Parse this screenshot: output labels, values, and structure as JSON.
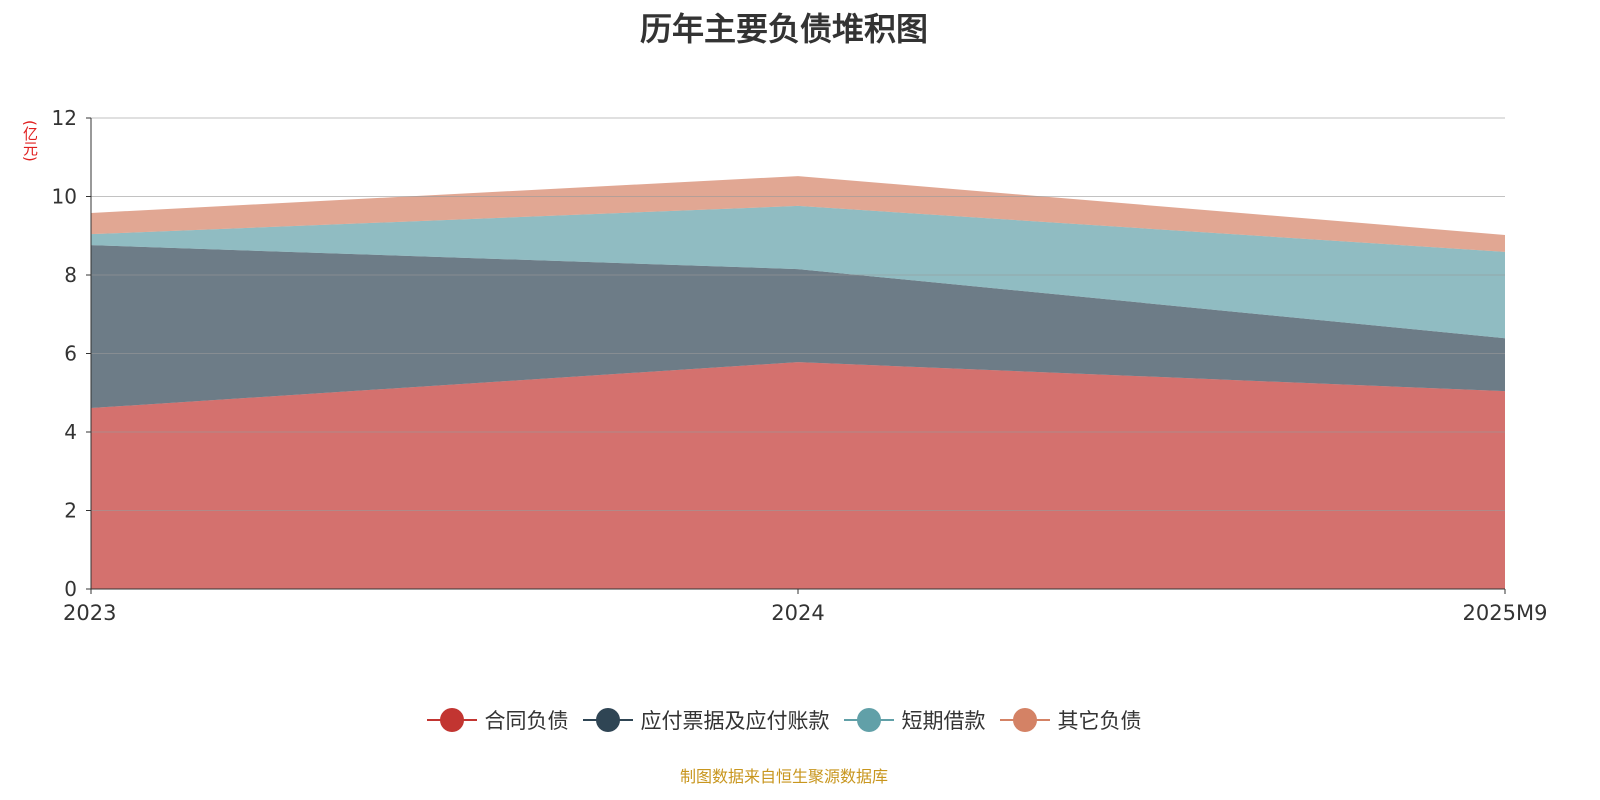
{
  "chart_data": {
    "type": "area",
    "stacked": true,
    "title": "历年主要负债堆积图",
    "ylabel": "(亿元)",
    "xlabel": "",
    "categories": [
      "2023",
      "2024",
      "2025M9"
    ],
    "ylim": [
      0,
      12
    ],
    "yticks": [
      0,
      2,
      4,
      6,
      8,
      10,
      12
    ],
    "grid": true,
    "legend_position": "bottom",
    "series": [
      {
        "name": "合同负债",
        "color": "#c23531",
        "values": [
          4.61,
          5.78,
          5.04
        ]
      },
      {
        "name": "应付票据及应付账款",
        "color": "#2f4554",
        "values": [
          4.15,
          2.37,
          1.35
        ]
      },
      {
        "name": "短期借款",
        "color": "#61a0a8",
        "values": [
          0.28,
          1.61,
          2.2
        ]
      },
      {
        "name": "其它负债",
        "color": "#d48265",
        "values": [
          0.54,
          0.76,
          0.43
        ]
      }
    ]
  },
  "footer": "制图数据来自恒生聚源数据库"
}
